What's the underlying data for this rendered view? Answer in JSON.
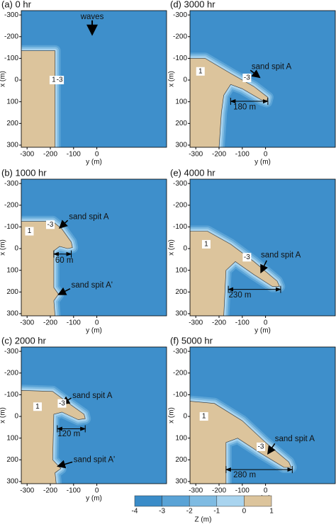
{
  "figure": {
    "panels": [
      {
        "label": "(a) 0 hr",
        "notes": [
          "waves",
          "1",
          "-3"
        ]
      },
      {
        "label": "(b) 1000 hr",
        "notes": [
          "-3",
          "1",
          "sand spit A",
          "60 m",
          "sand spit A'"
        ]
      },
      {
        "label": "(c) 2000 hr",
        "notes": [
          "-3",
          "1",
          "sand spit A",
          "120 m",
          "sand spit A'"
        ]
      },
      {
        "label": "(d) 3000 hr",
        "notes": [
          "1",
          "-3",
          "sand spit A",
          "180 m"
        ]
      },
      {
        "label": "(e) 4000 hr",
        "notes": [
          "1",
          "-3",
          "sand spit A",
          "230 m"
        ]
      },
      {
        "label": "(f) 5000 hr",
        "notes": [
          "1",
          "-3",
          "sand spit A",
          "280 m"
        ]
      }
    ],
    "axes": {
      "x_label": "x (m)",
      "y_label": "y (m)",
      "x_ticks": [
        "-300",
        "-200",
        "-100",
        "0",
        "100",
        "200",
        "300"
      ],
      "y_ticks": [
        "-300",
        "-200",
        "-100",
        "0"
      ]
    },
    "colorbar": {
      "title": "Z (m)",
      "ticks": [
        "-4",
        "-3",
        "-2",
        "-1",
        "0",
        "1"
      ]
    }
  }
}
